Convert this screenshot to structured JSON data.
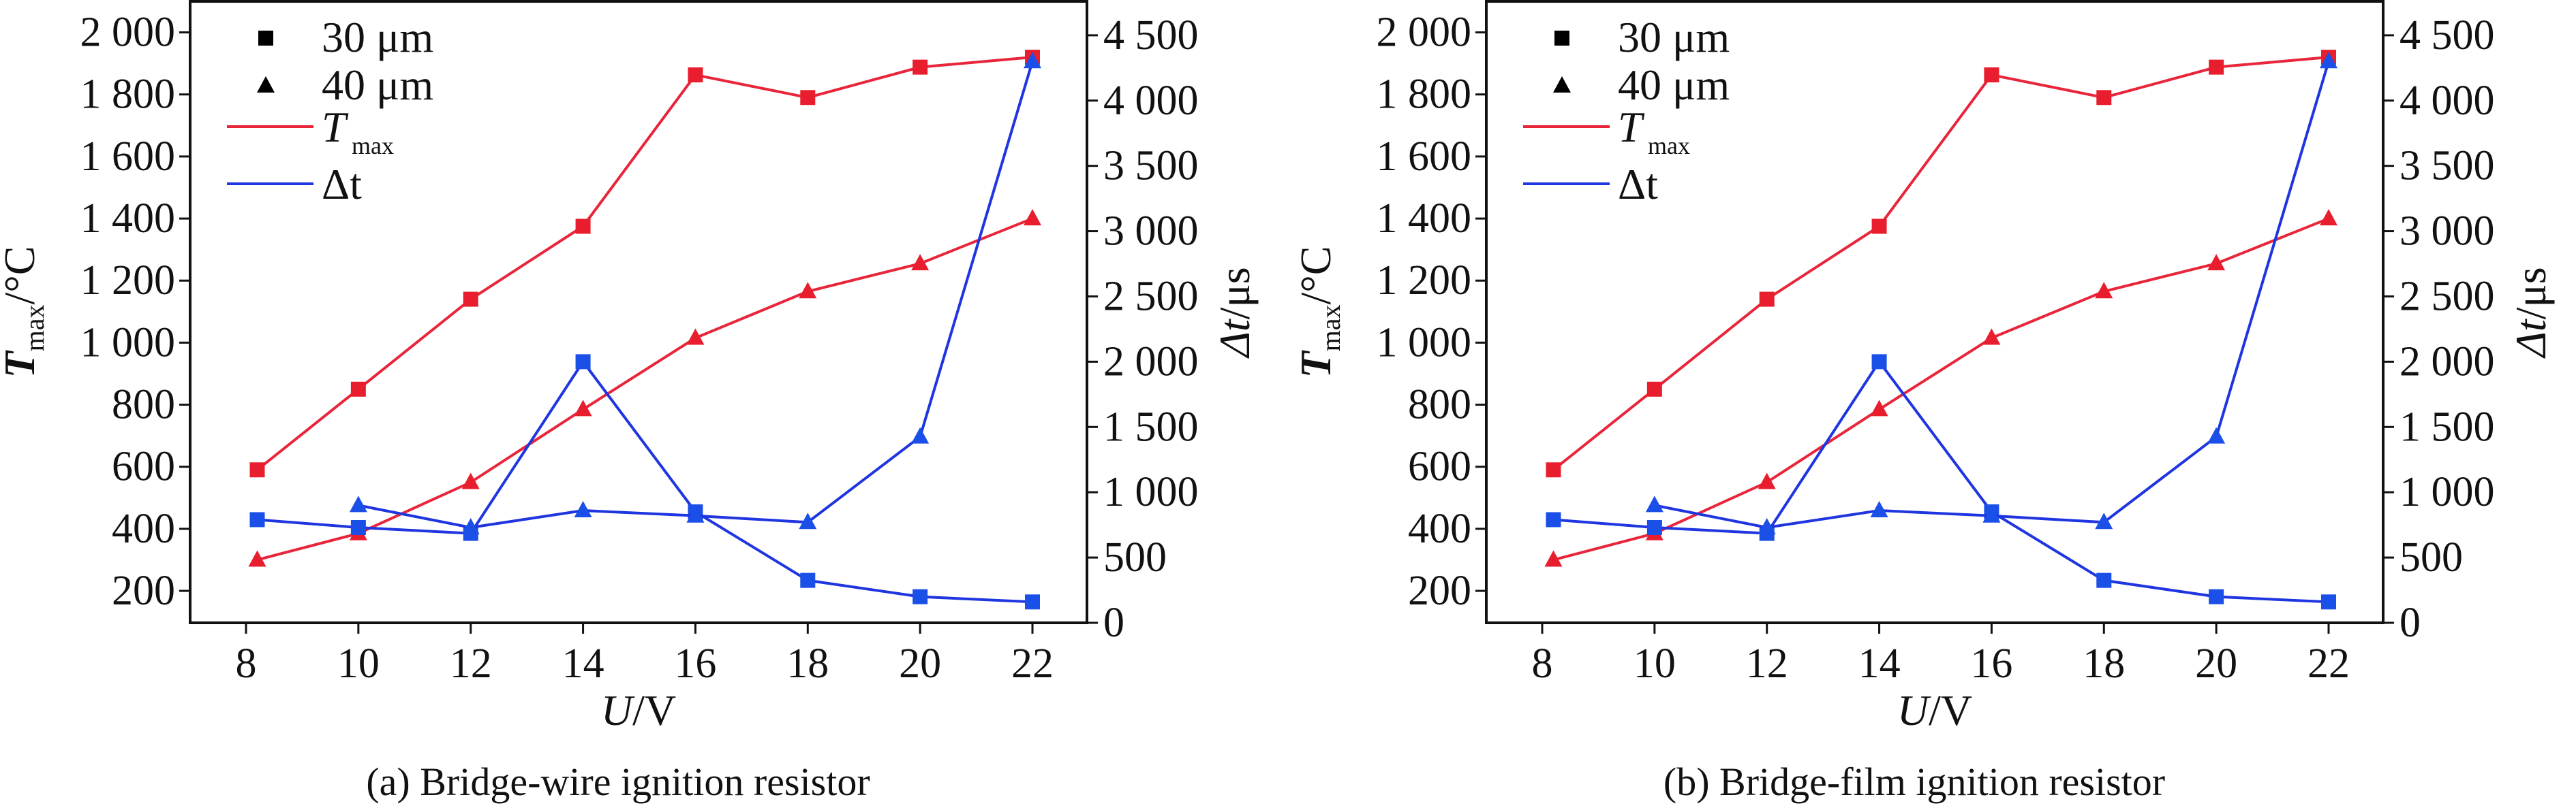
{
  "colors": {
    "tmax": "#e8253a",
    "dt": "#1f35e0",
    "tmax_marker": "#e81e2e",
    "dt_marker": "#1a4fe8",
    "axis": "#111111"
  },
  "chart_data": [
    {
      "type": "line",
      "caption": "(a) Bridge-wire ignition resistor",
      "xlabel": {
        "main": "U",
        "unit": "/V"
      },
      "ylabel_left": {
        "main": "T",
        "sub": "max",
        "unit": "/°C"
      },
      "ylabel_right": {
        "main": "Δt",
        "unit": "/μs"
      },
      "xlim": [
        7.3,
        23
      ],
      "ylim_left": [
        97,
        2100
      ],
      "ylim_right": [
        0,
        4760
      ],
      "x_ticks": [
        "8",
        "10",
        "12",
        "14",
        "16",
        "18",
        "20",
        "22"
      ],
      "y_left_ticks": [
        "200",
        "400",
        "600",
        "800",
        "1 000",
        "1 200",
        "1 400",
        "1 600",
        "1 800",
        "2 000"
      ],
      "y_right_ticks": [
        "0",
        "500",
        "1 000",
        "1 500",
        "2 000",
        "2 500",
        "3 000",
        "3 500",
        "4 000",
        "4 500"
      ],
      "legend": {
        "position": "top-left",
        "items": [
          "30 μm",
          "40 μm",
          "T",
          "Δt"
        ],
        "tmax_sub": "max"
      },
      "grid": false,
      "series": [
        {
          "name": "30 μm T_max",
          "axis": "left",
          "color_key": "tmax",
          "marker": "square",
          "x": [
            8.2,
            10,
            12,
            14,
            16,
            18,
            20,
            22
          ],
          "y": [
            590,
            850,
            1140,
            1375,
            1863,
            1790,
            1888,
            1920
          ]
        },
        {
          "name": "40 μm T_max",
          "axis": "left",
          "color_key": "tmax",
          "marker": "triangle",
          "x": [
            8.2,
            10,
            12,
            14,
            16,
            18,
            20,
            22
          ],
          "y": [
            300,
            385,
            550,
            785,
            1015,
            1165,
            1255,
            1400
          ]
        },
        {
          "name": "30 μm Δt",
          "axis": "right",
          "color_key": "dt",
          "marker": "square",
          "x": [
            8.2,
            10,
            12,
            14,
            16,
            18,
            20,
            22
          ],
          "y": [
            790,
            730,
            685,
            2000,
            850,
            325,
            200,
            160
          ]
        },
        {
          "name": "40 μm Δt",
          "axis": "right",
          "color_key": "dt",
          "marker": "triangle",
          "x": [
            10,
            12,
            14,
            16,
            18,
            20,
            22
          ],
          "y": [
            900,
            730,
            860,
            820,
            770,
            1425,
            4300
          ]
        }
      ]
    },
    {
      "type": "line",
      "caption": "(b) Bridge-film ignition resistor",
      "xlabel": {
        "main": "U",
        "unit": "/V"
      },
      "ylabel_left": {
        "main": "T",
        "sub": "max",
        "unit": "/°C"
      },
      "ylabel_right": {
        "main": "Δt",
        "unit": "/μs"
      },
      "xlim": [
        7.3,
        23
      ],
      "ylim_left": [
        97,
        2100
      ],
      "ylim_right": [
        0,
        4760
      ],
      "x_ticks": [
        "8",
        "10",
        "12",
        "14",
        "16",
        "18",
        "20",
        "22"
      ],
      "y_left_ticks": [
        "200",
        "400",
        "600",
        "800",
        "1 000",
        "1 200",
        "1 400",
        "1 600",
        "1 800",
        "2 000"
      ],
      "y_right_ticks": [
        "0",
        "500",
        "1 000",
        "1 500",
        "2 000",
        "2 500",
        "3 000",
        "3 500",
        "4 000",
        "4 500"
      ],
      "legend": {
        "position": "top-left",
        "items": [
          "30 μm",
          "40 μm",
          "T",
          "Δt"
        ],
        "tmax_sub": "max"
      },
      "grid": false,
      "series": [
        {
          "name": "30 μm T_max",
          "axis": "left",
          "color_key": "tmax",
          "marker": "square",
          "x": [
            8.2,
            10,
            12,
            14,
            16,
            18,
            20,
            22
          ],
          "y": [
            590,
            850,
            1140,
            1375,
            1863,
            1790,
            1888,
            1920
          ]
        },
        {
          "name": "40 μm T_max",
          "axis": "left",
          "color_key": "tmax",
          "marker": "triangle",
          "x": [
            8.2,
            10,
            12,
            14,
            16,
            18,
            20,
            22
          ],
          "y": [
            300,
            385,
            550,
            785,
            1015,
            1165,
            1255,
            1400
          ]
        },
        {
          "name": "30 μm Δt",
          "axis": "right",
          "color_key": "dt",
          "marker": "square",
          "x": [
            8.2,
            10,
            12,
            14,
            16,
            18,
            20,
            22
          ],
          "y": [
            790,
            730,
            685,
            2000,
            850,
            325,
            200,
            160
          ]
        },
        {
          "name": "40 μm Δt",
          "axis": "right",
          "color_key": "dt",
          "marker": "triangle",
          "x": [
            10,
            12,
            14,
            16,
            18,
            20,
            22
          ],
          "y": [
            900,
            730,
            860,
            820,
            770,
            1425,
            4300
          ]
        }
      ]
    }
  ]
}
